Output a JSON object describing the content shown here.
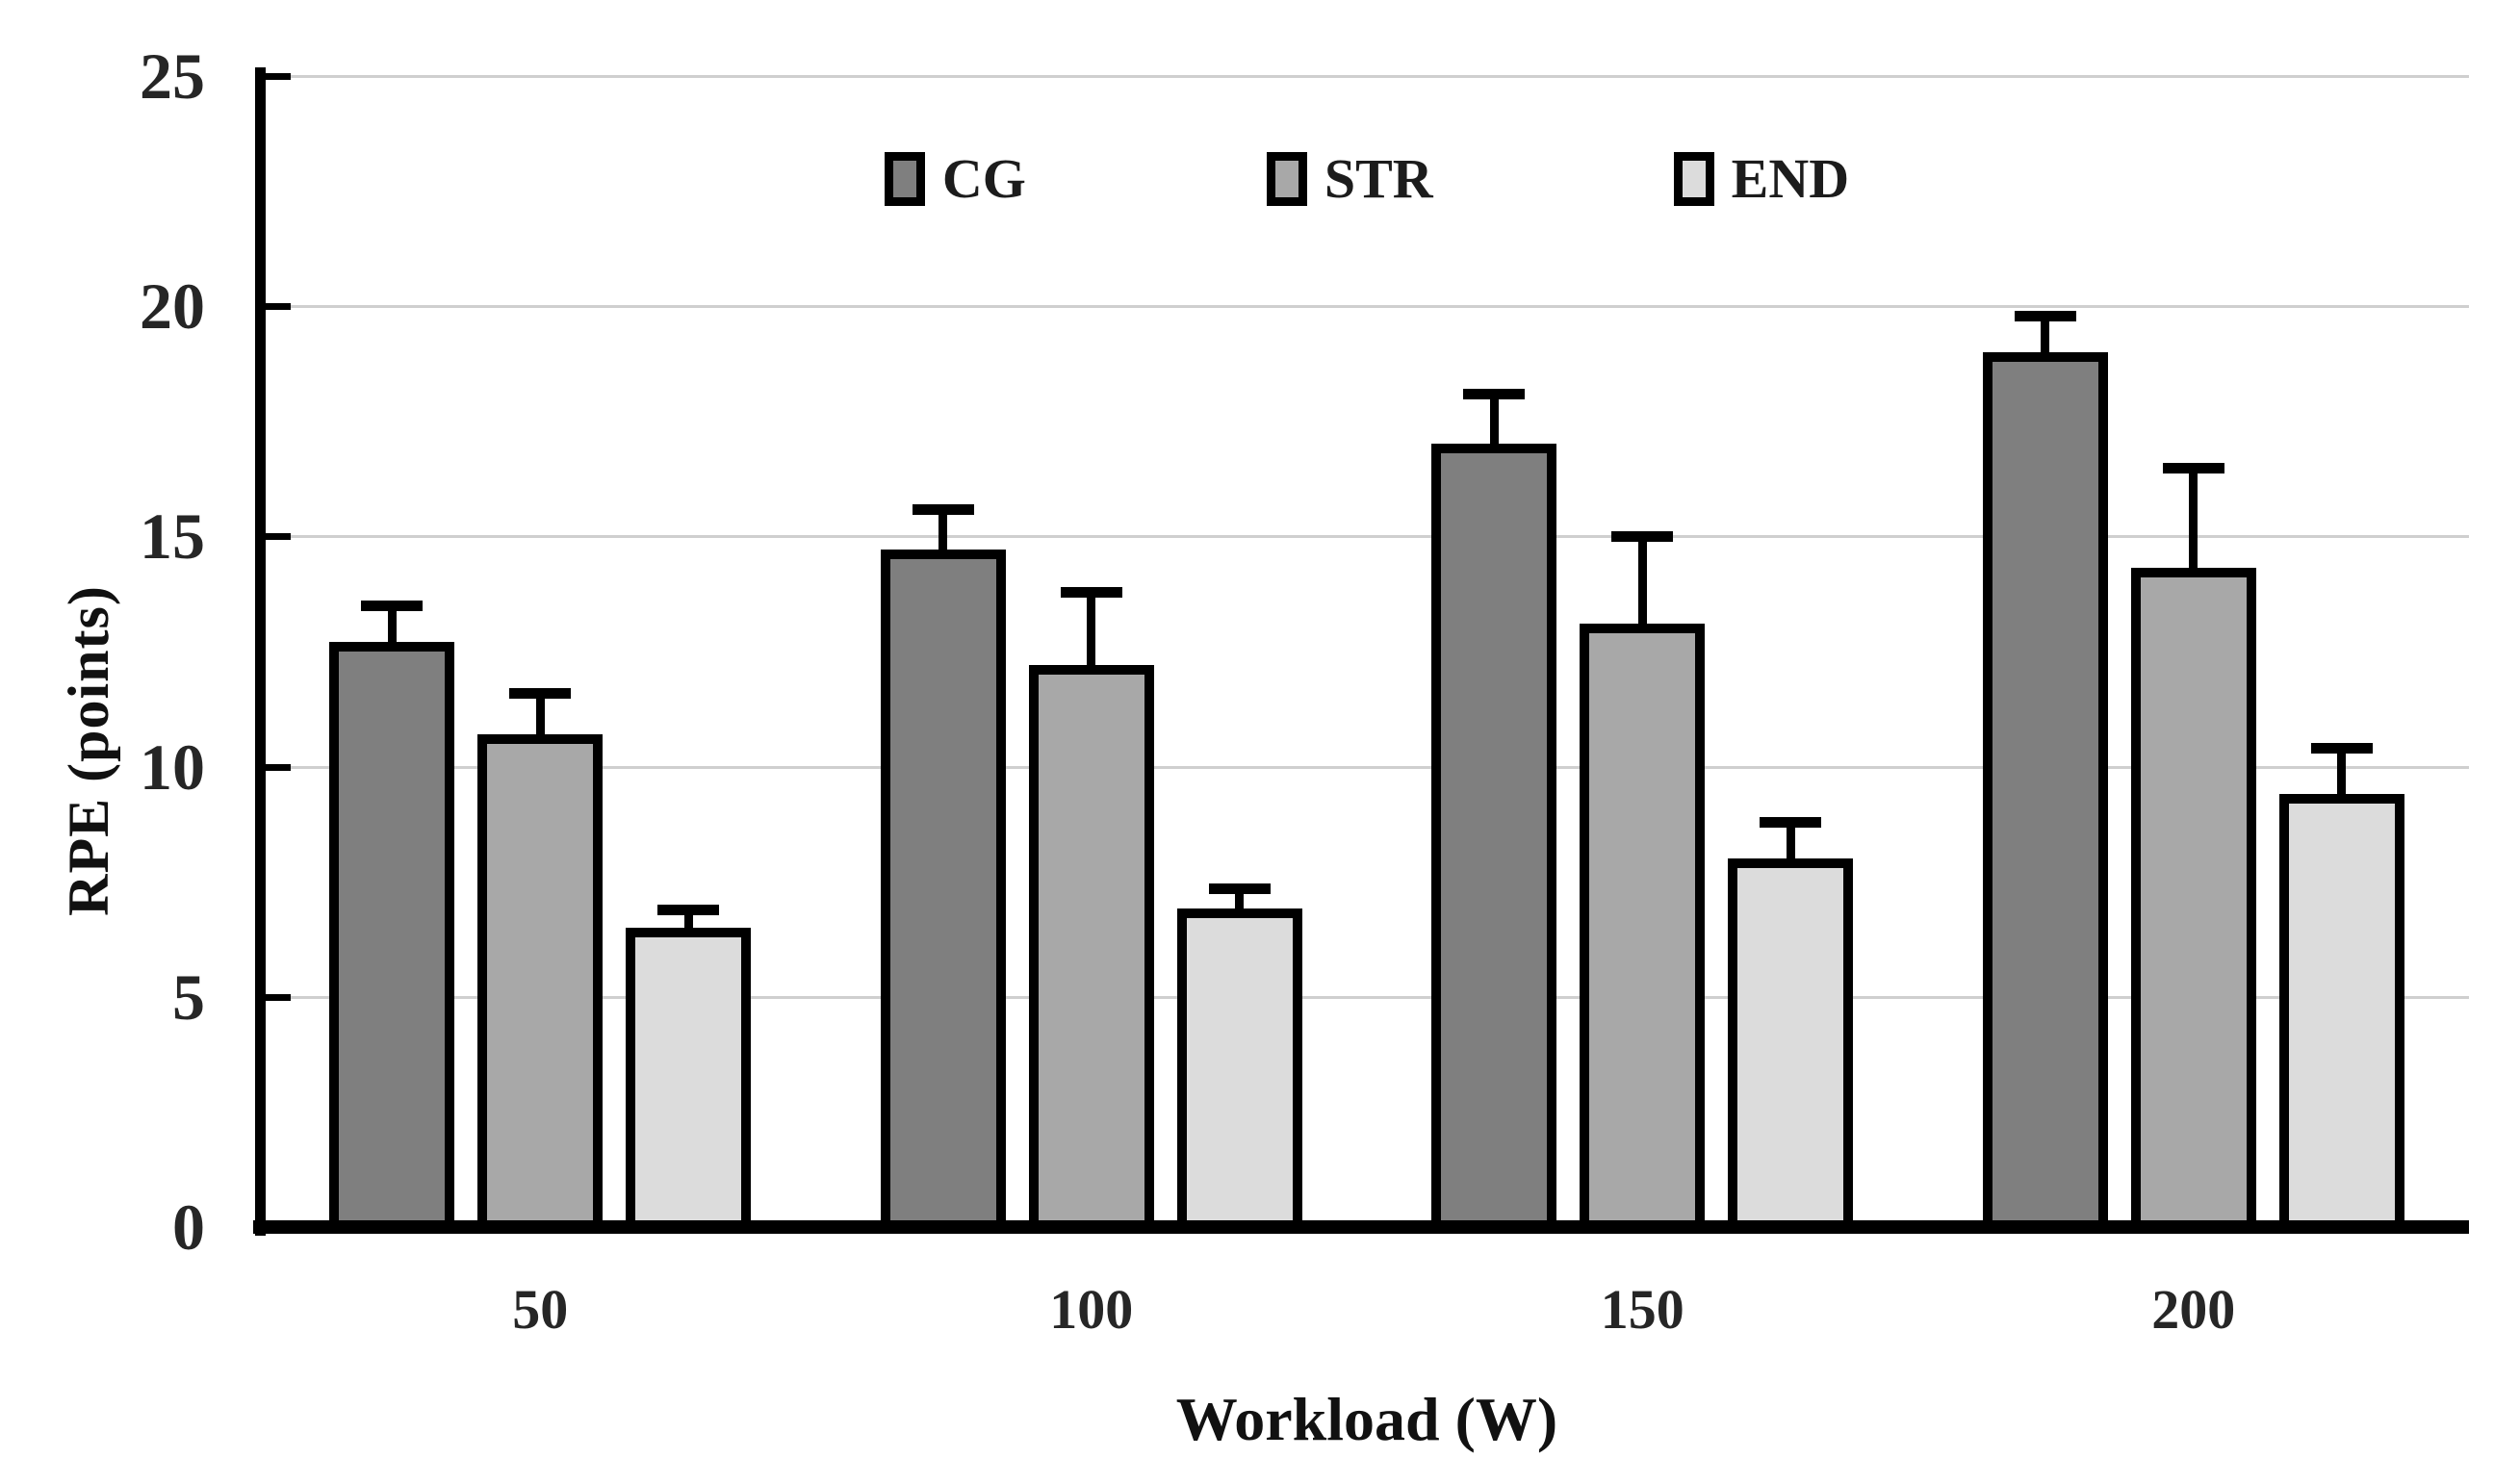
{
  "axes": {
    "y_ticks": [
      0,
      5,
      10,
      15,
      20,
      25
    ],
    "y_label": "RPE (points)",
    "x_label": "Workload (W)"
  },
  "chart_data": {
    "type": "bar",
    "title": "",
    "xlabel": "Workload (W)",
    "ylabel": "RPE (points)",
    "categories": [
      "50",
      "100",
      "150",
      "200"
    ],
    "series": [
      {
        "name": "CG",
        "color": "#7f7f7f",
        "values": [
          12.5,
          14.5,
          16.8,
          18.8
        ],
        "errors": [
          1.0,
          1.1,
          1.3,
          1.0
        ]
      },
      {
        "name": "STR",
        "color": "#a8a8a8",
        "values": [
          10.5,
          12.0,
          12.9,
          14.1
        ],
        "errors": [
          1.1,
          1.8,
          2.1,
          2.4
        ]
      },
      {
        "name": "END",
        "color": "#dcdcdc",
        "values": [
          6.3,
          6.7,
          7.8,
          9.2
        ],
        "errors": [
          0.6,
          0.65,
          1.0,
          1.2
        ]
      }
    ],
    "ylim": [
      0,
      25
    ],
    "grid": true,
    "gridline_color": "#cfcfcf",
    "bar_border_color": "#000000",
    "error_bars": "upper-only",
    "legend_position": "top-center"
  }
}
